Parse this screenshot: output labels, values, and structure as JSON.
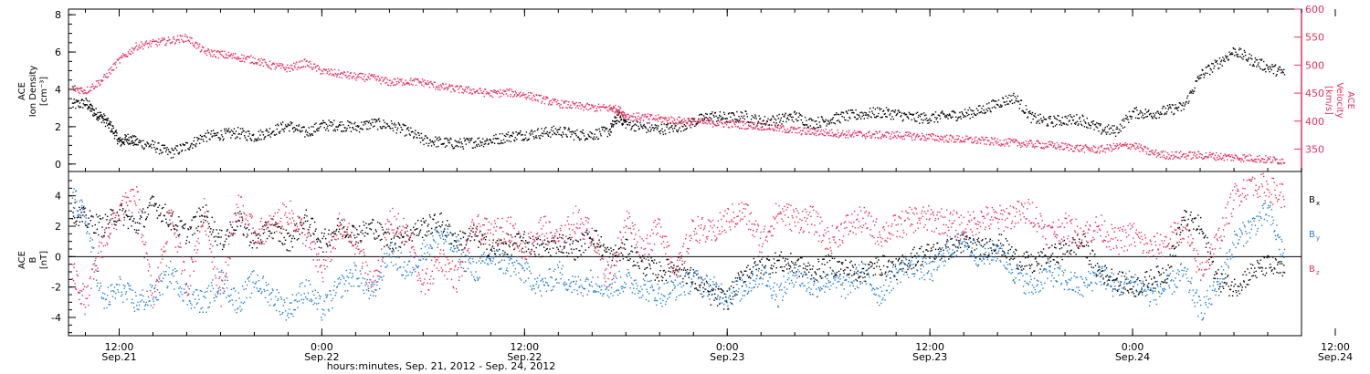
{
  "colors": {
    "black": "#000000",
    "pink": "#e8305e",
    "blue": "#1f7fd0"
  },
  "footer": {
    "title": "hours:minutes, Sep. 21, 2012 - Sep. 24, 2012"
  },
  "time_axis": {
    "min_hours": 9.0,
    "max_hours": 82.0,
    "ticks": [
      {
        "hours": 12,
        "time": "12:00",
        "date": "Sep.21"
      },
      {
        "hours": 24,
        "time": "0:00",
        "date": "Sep.22"
      },
      {
        "hours": 36,
        "time": "12:00",
        "date": "Sep.22"
      },
      {
        "hours": 48,
        "time": "0:00",
        "date": "Sep.23"
      },
      {
        "hours": 60,
        "time": "12:00",
        "date": "Sep.23"
      },
      {
        "hours": 72,
        "time": "0:00",
        "date": "Sep.24"
      },
      {
        "hours": 84,
        "time": "12:00",
        "date": "Sep.24"
      }
    ]
  },
  "chart_data": [
    {
      "type": "scatter",
      "panel": "top",
      "ylabel_left": [
        "ACE",
        "Ion Density",
        "[cm⁻³]"
      ],
      "ylabel_right": [
        "ACE",
        "Velocity",
        "[km/s]"
      ],
      "ylim_left": [
        -0.4,
        8.3
      ],
      "yticks_left": [
        0,
        2,
        4,
        6,
        8
      ],
      "ylim_right": [
        310,
        600
      ],
      "yticks_right": [
        350,
        400,
        450,
        500,
        550,
        600
      ],
      "series": [
        {
          "key": "density",
          "axis": "left",
          "color": "#000000",
          "t": [
            9.2,
            10,
            10.5,
            11,
            11.5,
            12,
            12.5,
            13,
            14,
            15,
            16,
            17,
            18,
            19,
            20,
            21,
            22,
            23,
            24,
            25,
            26,
            27,
            28,
            29,
            30,
            31,
            32,
            33,
            34,
            35,
            36,
            37,
            38,
            39,
            40,
            41,
            41.5,
            42,
            43,
            44,
            45,
            46,
            47,
            48,
            49,
            50,
            51,
            52,
            53,
            54,
            55,
            56,
            57,
            58,
            59,
            60,
            61,
            62,
            63,
            64,
            65,
            66,
            67,
            68,
            69,
            70,
            71,
            72,
            73,
            74,
            75,
            76,
            77,
            78,
            79,
            80,
            81
          ],
          "y": [
            3.2,
            3.3,
            2.8,
            2.5,
            2.0,
            1.2,
            1.4,
            1.2,
            1.0,
            0.6,
            1.0,
            1.5,
            1.6,
            1.7,
            1.5,
            1.8,
            2.1,
            1.7,
            2.1,
            2.1,
            2.0,
            2.2,
            2.1,
            1.8,
            1.3,
            1.2,
            1.1,
            1.2,
            1.3,
            1.5,
            1.6,
            1.7,
            1.8,
            1.6,
            1.6,
            1.8,
            2.6,
            2.2,
            2.0,
            1.9,
            2.0,
            2.3,
            2.6,
            2.5,
            2.6,
            2.3,
            2.4,
            2.6,
            2.2,
            2.4,
            2.6,
            2.7,
            2.8,
            2.7,
            2.5,
            2.5,
            2.6,
            2.7,
            2.9,
            3.3,
            3.6,
            2.5,
            2.3,
            2.4,
            2.4,
            1.9,
            1.8,
            2.8,
            2.7,
            2.9,
            3.1,
            4.8,
            5.4,
            6.1,
            5.6,
            5.2,
            4.9
          ]
        },
        {
          "key": "velocity",
          "axis": "right",
          "color": "#e8305e",
          "t": [
            9.2,
            10,
            11,
            12,
            13,
            14,
            15,
            16,
            17,
            18,
            19,
            20,
            21,
            22,
            23,
            24,
            25,
            26,
            27,
            28,
            29,
            30,
            31,
            32,
            33,
            34,
            35,
            36,
            37,
            38,
            39,
            40,
            41,
            41.5,
            42,
            43,
            44,
            45,
            46,
            47,
            48,
            49,
            50,
            51,
            52,
            53,
            54,
            55,
            56,
            57,
            58,
            59,
            60,
            61,
            62,
            63,
            64,
            65,
            66,
            67,
            68,
            69,
            70,
            71,
            72,
            73,
            74,
            75,
            76,
            77,
            78,
            79,
            80,
            81
          ],
          "y": [
            460,
            455,
            475,
            510,
            535,
            540,
            545,
            550,
            525,
            520,
            515,
            510,
            500,
            495,
            505,
            490,
            485,
            480,
            478,
            470,
            472,
            470,
            462,
            458,
            455,
            450,
            452,
            448,
            440,
            432,
            428,
            425,
            424,
            422,
            410,
            408,
            405,
            402,
            400,
            398,
            396,
            394,
            392,
            388,
            384,
            382,
            380,
            378,
            377,
            376,
            376,
            374,
            372,
            370,
            368,
            366,
            364,
            362,
            360,
            358,
            355,
            352,
            350,
            355,
            358,
            345,
            340,
            340,
            340,
            338,
            336,
            335,
            332,
            330
          ]
        }
      ]
    },
    {
      "type": "scatter",
      "panel": "bottom",
      "ylabel_left": [
        "ACE",
        "B",
        "[nT]"
      ],
      "ylim": [
        -5.2,
        5.6
      ],
      "yticks": [
        -4,
        -2,
        0,
        2,
        4
      ],
      "zero_line": true,
      "legend": [
        {
          "text": "B",
          "sub": "x",
          "color": "#000000"
        },
        {
          "text": "B",
          "sub": "y",
          "color": "#1f7fd0"
        },
        {
          "text": "B",
          "sub": "z",
          "color": "#e8305e"
        }
      ],
      "series": [
        {
          "key": "bx",
          "color": "#000000",
          "t": [
            9.2,
            10,
            11,
            12,
            13,
            14,
            15,
            16,
            17,
            18,
            19,
            20,
            21,
            22,
            23,
            24,
            25,
            26,
            27,
            28,
            29,
            30,
            31,
            32,
            33,
            34,
            35,
            36,
            37,
            38,
            39,
            40,
            41,
            42,
            43,
            44,
            45,
            46,
            47,
            48,
            49,
            50,
            51,
            52,
            53,
            54,
            55,
            56,
            57,
            58,
            59,
            60,
            61,
            62,
            63,
            64,
            65,
            66,
            67,
            68,
            69,
            70,
            71,
            72,
            73,
            74,
            75,
            76,
            77,
            78,
            79,
            80,
            81
          ],
          "y": [
            3.0,
            2.5,
            2.0,
            3.0,
            2.0,
            3.5,
            2.5,
            1.5,
            3.0,
            1.0,
            2.5,
            1.0,
            2.0,
            1.0,
            2.5,
            1.0,
            2.0,
            1.5,
            2.0,
            1.0,
            1.5,
            2.0,
            2.3,
            1.0,
            1.5,
            0.5,
            0.8,
            1.0,
            0.5,
            1.0,
            0.5,
            1.5,
            0.0,
            0.5,
            -0.5,
            -1.0,
            -0.5,
            -1.5,
            -2.5,
            -2.8,
            -1.0,
            -0.5,
            -0.3,
            -0.5,
            -1.0,
            -0.5,
            -0.8,
            -1.0,
            -0.5,
            -0.8,
            0.0,
            0.3,
            0.5,
            1.0,
            0.5,
            1.0,
            0.0,
            -0.5,
            0.0,
            0.5,
            1.0,
            -1.0,
            -1.5,
            -2.0,
            -1.5,
            -1.0,
            2.5,
            2.0,
            -1.5,
            -2.0,
            -1.0,
            -0.5,
            -1.0
          ]
        },
        {
          "key": "by",
          "color": "#1f7fd0",
          "t": [
            9.2,
            10,
            11,
            12,
            13,
            14,
            15,
            16,
            17,
            18,
            19,
            20,
            21,
            22,
            23,
            24,
            25,
            26,
            27,
            28,
            29,
            30,
            31,
            32,
            33,
            34,
            35,
            36,
            37,
            38,
            39,
            40,
            41,
            42,
            43,
            44,
            45,
            46,
            47,
            48,
            49,
            50,
            51,
            52,
            53,
            54,
            55,
            56,
            57,
            58,
            59,
            60,
            61,
            62,
            63,
            64,
            65,
            66,
            67,
            68,
            69,
            70,
            71,
            72,
            73,
            74,
            75,
            76,
            77,
            78,
            79,
            80,
            81
          ],
          "y": [
            4.0,
            2.5,
            -3.0,
            -2.0,
            -3.0,
            -2.5,
            -1.0,
            -2.5,
            -3.0,
            -1.5,
            -3.0,
            -1.5,
            -2.5,
            -3.5,
            -2.0,
            -3.5,
            -2.0,
            -1.0,
            -2.5,
            0.5,
            -1.0,
            0.5,
            1.5,
            0.5,
            -1.0,
            0.0,
            -0.5,
            -1.0,
            -2.0,
            -1.0,
            -2.0,
            -1.5,
            -2.0,
            -1.5,
            -2.0,
            -2.5,
            -2.0,
            -1.5,
            -2.0,
            -2.5,
            -2.0,
            -1.0,
            -2.5,
            -1.0,
            -2.0,
            -1.5,
            -2.0,
            -1.0,
            -2.5,
            -1.0,
            -0.5,
            -1.0,
            0.5,
            1.0,
            0.0,
            0.5,
            -1.0,
            -2.0,
            -1.0,
            -1.5,
            -2.0,
            -1.0,
            -2.0,
            -1.5,
            -2.5,
            -2.0,
            -1.0,
            -3.5,
            -2.0,
            1.0,
            2.0,
            3.0,
            0.0
          ]
        },
        {
          "key": "bz",
          "color": "#e8305e",
          "t": [
            9.2,
            10,
            11,
            12,
            13,
            14,
            15,
            16,
            17,
            18,
            19,
            20,
            21,
            22,
            23,
            24,
            25,
            26,
            27,
            28,
            29,
            30,
            31,
            32,
            33,
            34,
            35,
            36,
            37,
            38,
            39,
            40,
            41,
            42,
            43,
            44,
            45,
            46,
            47,
            48,
            49,
            50,
            51,
            52,
            53,
            54,
            55,
            56,
            57,
            58,
            59,
            60,
            61,
            62,
            63,
            64,
            65,
            66,
            67,
            68,
            69,
            70,
            71,
            72,
            73,
            74,
            75,
            76,
            77,
            78,
            79,
            80,
            81
          ],
          "y": [
            -1.0,
            -3.0,
            1.0,
            3.0,
            4.0,
            -3.0,
            3.0,
            -2.0,
            3.0,
            -2.5,
            3.5,
            1.5,
            2.0,
            3.0,
            1.5,
            -1.0,
            2.0,
            1.0,
            -2.0,
            2.5,
            1.5,
            -2.0,
            0.0,
            -1.5,
            2.0,
            1.5,
            2.0,
            0.5,
            2.0,
            1.0,
            2.5,
            1.5,
            -1.5,
            2.5,
            0.5,
            2.0,
            -1.0,
            2.0,
            1.5,
            2.5,
            3.0,
            1.0,
            3.0,
            2.5,
            2.5,
            1.0,
            2.0,
            2.5,
            1.5,
            2.0,
            2.5,
            2.5,
            2.3,
            2.0,
            2.5,
            2.5,
            2.8,
            3.0,
            1.5,
            2.0,
            1.5,
            2.0,
            1.0,
            1.5,
            0.5,
            1.0,
            2.0,
            -1.0,
            1.0,
            4.0,
            5.0,
            4.5,
            4.0
          ]
        }
      ]
    }
  ]
}
